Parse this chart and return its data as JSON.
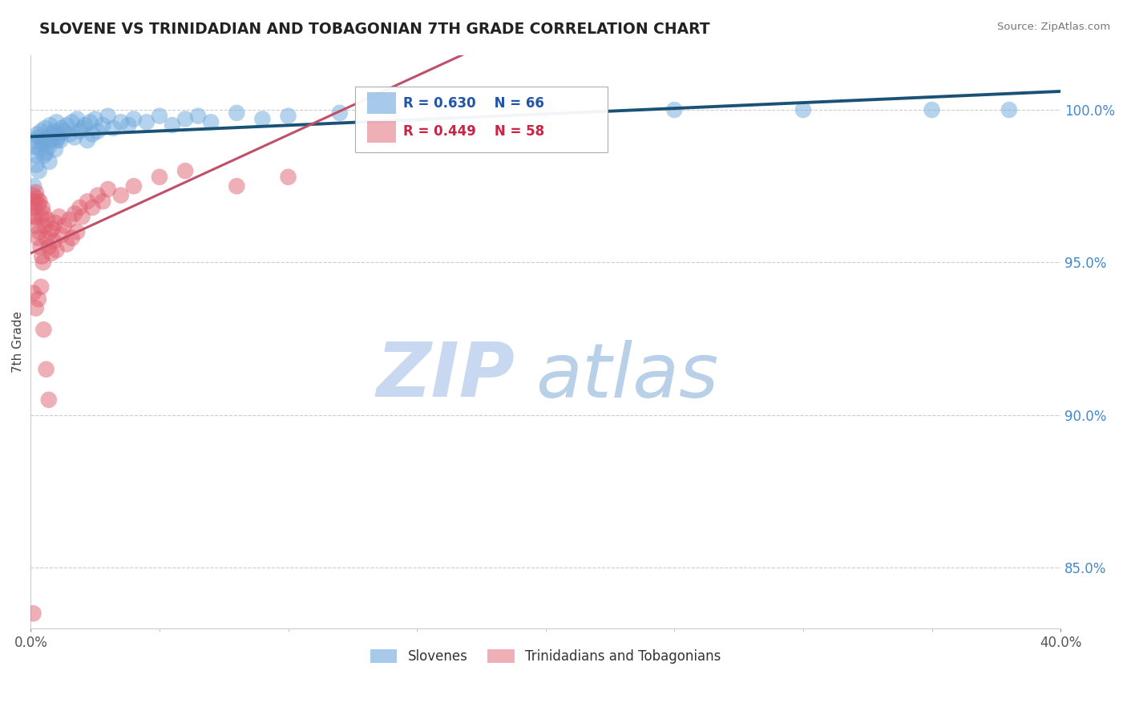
{
  "title": "SLOVENE VS TRINIDADIAN AND TOBAGONIAN 7TH GRADE CORRELATION CHART",
  "source": "Source: ZipAtlas.com",
  "ylabel": "7th Grade",
  "ylabel_right_ticks": [
    85.0,
    90.0,
    95.0,
    100.0
  ],
  "xmin": 0.0,
  "xmax": 40.0,
  "ymin": 83.0,
  "ymax": 101.8,
  "blue_R": 0.63,
  "blue_N": 66,
  "pink_R": 0.449,
  "pink_N": 58,
  "blue_color": "#6fa8dc",
  "pink_color": "#e06070",
  "blue_line_color": "#1a5276",
  "pink_line_color": "#c0506a",
  "watermark_zip": "ZIP",
  "watermark_atlas": "atlas",
  "watermark_color_zip": "#c8d8f0",
  "watermark_color_atlas": "#b8d0e8",
  "legend_label_blue": "Slovenes",
  "legend_label_pink": "Trinidadians and Tobagonians",
  "blue_scatter_x": [
    0.1,
    0.15,
    0.2,
    0.25,
    0.3,
    0.35,
    0.4,
    0.45,
    0.5,
    0.55,
    0.6,
    0.65,
    0.7,
    0.75,
    0.8,
    0.85,
    0.9,
    0.95,
    1.0,
    1.05,
    1.1,
    1.15,
    1.2,
    1.3,
    1.4,
    1.5,
    1.6,
    1.7,
    1.8,
    1.9,
    2.0,
    2.1,
    2.2,
    2.3,
    2.4,
    2.5,
    2.6,
    2.8,
    3.0,
    3.2,
    3.5,
    3.8,
    4.0,
    4.5,
    5.0,
    5.5,
    6.0,
    6.5,
    7.0,
    8.0,
    9.0,
    10.0,
    12.0,
    14.0,
    16.0,
    20.0,
    25.0,
    30.0,
    35.0,
    38.0,
    0.12,
    0.22,
    0.32,
    0.52,
    0.72,
    1.02
  ],
  "blue_scatter_y": [
    98.8,
    99.0,
    98.5,
    99.2,
    99.1,
    98.7,
    99.3,
    98.9,
    99.0,
    99.4,
    98.6,
    99.1,
    98.8,
    99.5,
    99.0,
    99.2,
    99.3,
    98.7,
    99.6,
    99.1,
    99.2,
    99.0,
    99.4,
    99.3,
    99.5,
    99.2,
    99.6,
    99.1,
    99.7,
    99.3,
    99.4,
    99.5,
    99.0,
    99.6,
    99.2,
    99.7,
    99.3,
    99.5,
    99.8,
    99.4,
    99.6,
    99.5,
    99.7,
    99.6,
    99.8,
    99.5,
    99.7,
    99.8,
    99.6,
    99.9,
    99.7,
    99.8,
    99.9,
    99.8,
    100.0,
    100.0,
    100.0,
    100.0,
    100.0,
    100.0,
    97.5,
    98.2,
    98.0,
    98.5,
    98.3,
    99.0
  ],
  "pink_scatter_x": [
    0.05,
    0.08,
    0.1,
    0.12,
    0.15,
    0.18,
    0.2,
    0.22,
    0.25,
    0.28,
    0.3,
    0.33,
    0.35,
    0.38,
    0.4,
    0.43,
    0.45,
    0.48,
    0.5,
    0.55,
    0.6,
    0.65,
    0.7,
    0.75,
    0.8,
    0.85,
    0.9,
    0.95,
    1.0,
    1.1,
    1.2,
    1.3,
    1.4,
    1.5,
    1.6,
    1.7,
    1.8,
    1.9,
    2.0,
    2.2,
    2.4,
    2.6,
    2.8,
    3.0,
    3.5,
    4.0,
    5.0,
    6.0,
    8.0,
    10.0,
    0.1,
    0.2,
    0.3,
    0.4,
    0.5,
    0.6,
    0.7,
    0.1
  ],
  "pink_scatter_y": [
    97.0,
    96.5,
    97.2,
    96.8,
    97.0,
    96.5,
    97.3,
    96.2,
    97.1,
    95.8,
    96.9,
    96.0,
    97.0,
    95.5,
    96.5,
    95.2,
    96.8,
    95.0,
    96.6,
    96.2,
    95.8,
    96.4,
    95.5,
    96.0,
    95.3,
    96.1,
    95.7,
    96.3,
    95.4,
    96.5,
    95.9,
    96.2,
    95.6,
    96.4,
    95.8,
    96.6,
    96.0,
    96.8,
    96.5,
    97.0,
    96.8,
    97.2,
    97.0,
    97.4,
    97.2,
    97.5,
    97.8,
    98.0,
    97.5,
    97.8,
    94.0,
    93.5,
    93.8,
    94.2,
    92.8,
    91.5,
    90.5,
    83.5
  ]
}
